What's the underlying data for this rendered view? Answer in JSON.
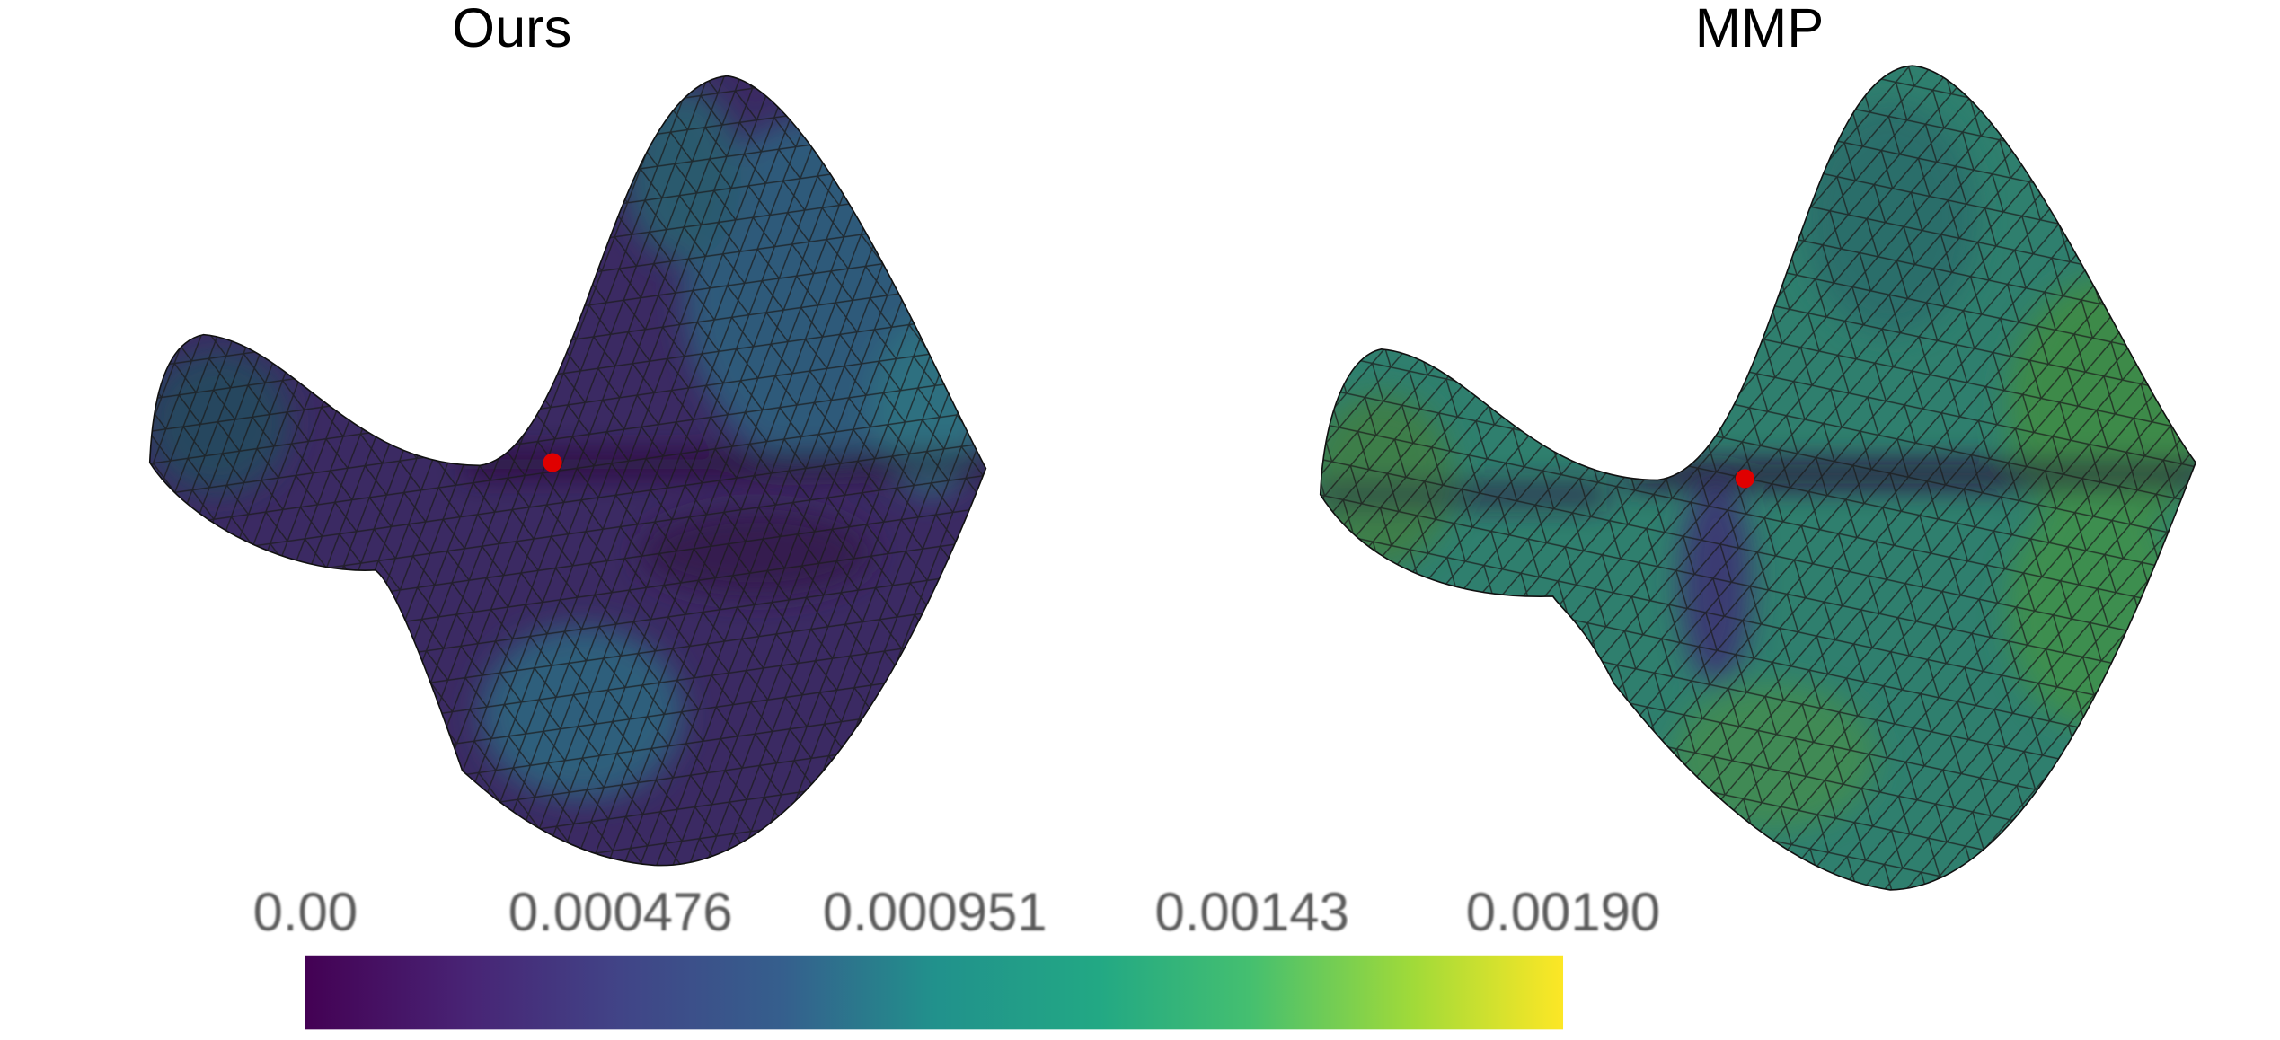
{
  "panels": [
    {
      "title": "Ours"
    },
    {
      "title": "MMP"
    }
  ],
  "colorbar": {
    "lim": [
      0,
      0.0019
    ],
    "ticks": [
      {
        "value": 0,
        "label": "0.00"
      },
      0.000476,
      0.000951,
      0.00143,
      {
        "value": 0.0019,
        "label": "0.00190"
      }
    ]
  }
}
